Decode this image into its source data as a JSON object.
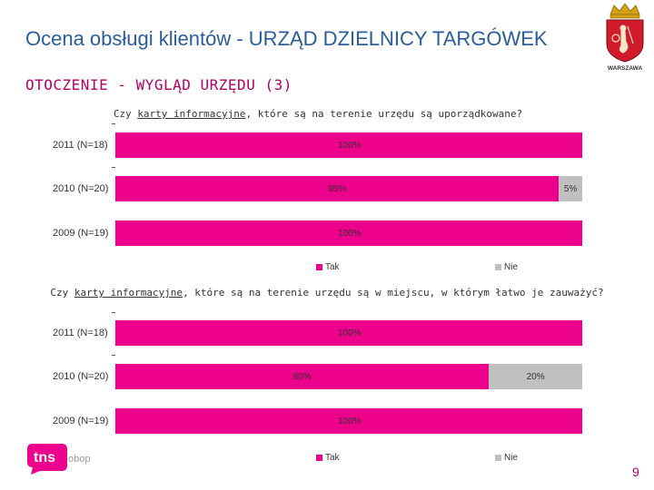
{
  "header": {
    "title": "Ocena obsługi klientów - URZĄD DZIELNICY TARGÓWEK",
    "subtitle": "OTOCZENIE - WYGLĄD URZĘDU (3)",
    "crest_label": "WARSZAWA"
  },
  "colors": {
    "tak": "#ec008c",
    "nie": "#c0c0c0",
    "title": "#2a5d9a",
    "accent": "#b0006a"
  },
  "chart_data": [
    {
      "type": "bar",
      "orientation": "horizontal",
      "stacked": true,
      "title_parts": [
        "Czy ",
        "karty informacyjne",
        ", które są na terenie urzędu są uporządkowane?"
      ],
      "categories": [
        "2011 (N=18)",
        "2010 (N=20)",
        "2009 (N=19)"
      ],
      "series": [
        {
          "name": "Tak",
          "values": [
            100,
            95,
            100
          ],
          "labels": [
            "100%",
            "95%",
            "100%"
          ]
        },
        {
          "name": "Nie",
          "values": [
            0,
            5,
            0
          ],
          "labels": [
            "",
            "5%",
            ""
          ]
        }
      ],
      "xlim": [
        0,
        100
      ],
      "legend": "bottom"
    },
    {
      "type": "bar",
      "orientation": "horizontal",
      "stacked": true,
      "title_parts": [
        "Czy ",
        "karty informacyjne",
        ", które są na terenie urzędu są w miejscu, w którym łatwo je zauważyć?"
      ],
      "categories": [
        "2011 (N=18)",
        "2010 (N=20)",
        "2009 (N=19)"
      ],
      "series": [
        {
          "name": "Tak",
          "values": [
            100,
            80,
            100
          ],
          "labels": [
            "100%",
            "80%",
            "100%"
          ]
        },
        {
          "name": "Nie",
          "values": [
            0,
            20,
            0
          ],
          "labels": [
            "",
            "20%",
            ""
          ]
        }
      ],
      "xlim": [
        0,
        100
      ],
      "legend": "bottom"
    }
  ],
  "logo": {
    "text": "tns",
    "suffix": "obop"
  },
  "page_number": "9"
}
